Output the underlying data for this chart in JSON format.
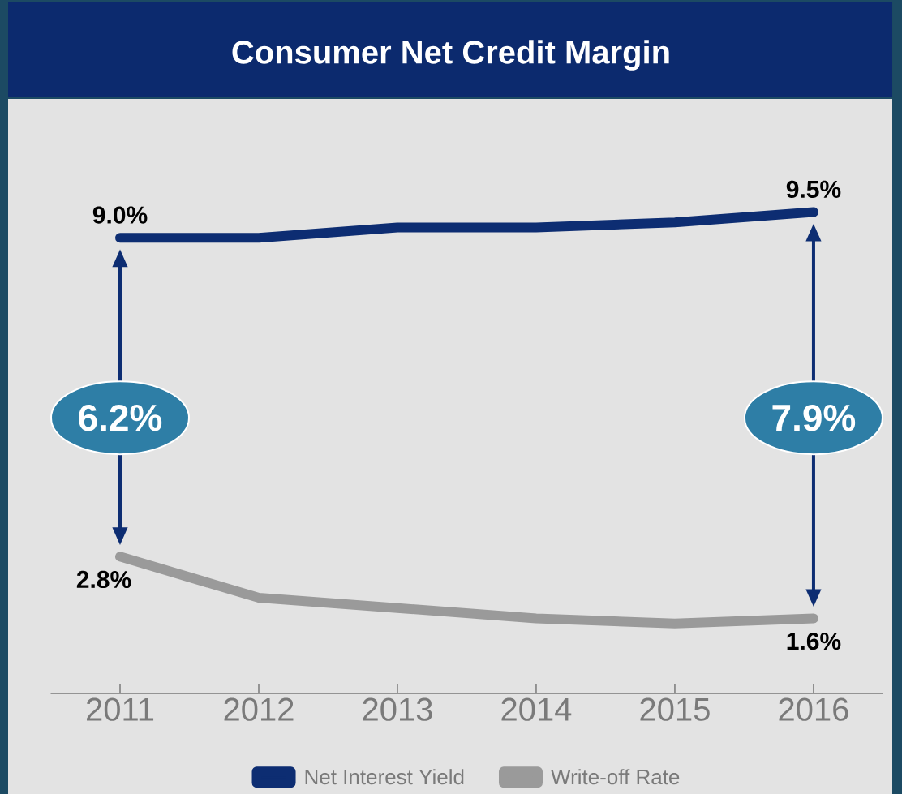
{
  "chart_data": {
    "type": "line",
    "title": "Consumer Net Credit Margin",
    "categories": [
      "2011",
      "2012",
      "2013",
      "2014",
      "2015",
      "2016"
    ],
    "series": [
      {
        "name": "Net Interest Yield",
        "color": "#0d2d72",
        "values": [
          9.0,
          9.0,
          9.2,
          9.2,
          9.3,
          9.5
        ],
        "value_labels": [
          "9.0%",
          null,
          null,
          null,
          null,
          "9.5%"
        ]
      },
      {
        "name": "Write-off Rate",
        "color": "#9a9a9a",
        "values": [
          2.8,
          2.0,
          1.8,
          1.6,
          1.5,
          1.6
        ],
        "value_labels": [
          "2.8%",
          null,
          null,
          null,
          null,
          "1.6%"
        ]
      }
    ],
    "annotations": [
      "6.2%",
      "7.9%"
    ],
    "legend": "bottom",
    "line_style": "solid",
    "marker": "none"
  }
}
